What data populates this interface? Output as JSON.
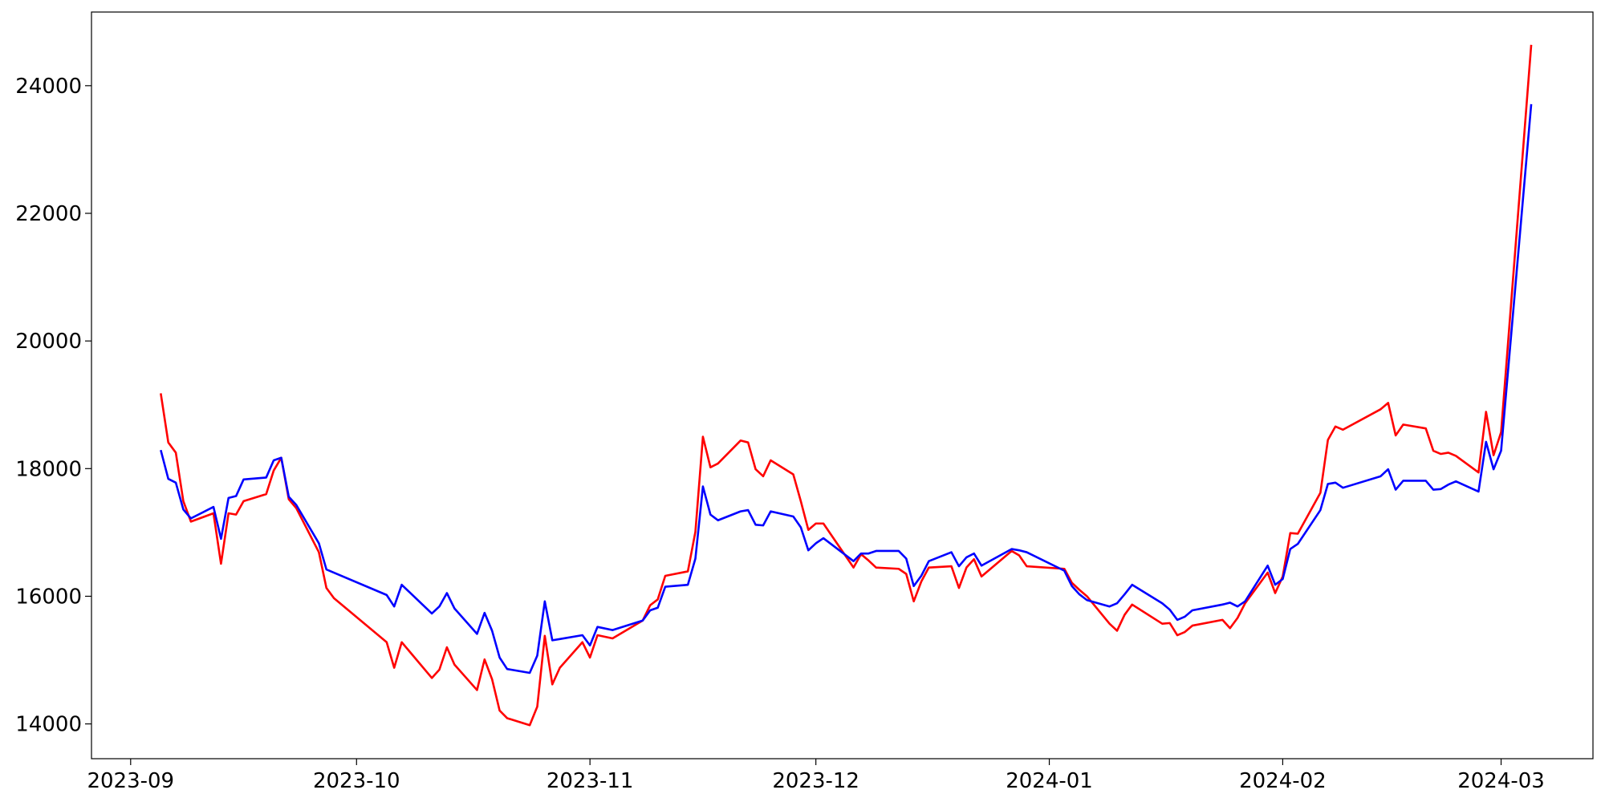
{
  "chart_data": {
    "type": "line",
    "x": [
      4,
      5,
      6,
      7,
      8,
      11,
      12,
      13,
      14,
      15,
      18,
      19,
      20,
      21,
      22,
      25,
      26,
      27,
      34,
      35,
      36,
      40,
      41,
      42,
      43,
      46,
      47,
      48,
      49,
      50,
      53,
      54,
      55,
      56,
      57,
      60,
      61,
      62,
      64,
      68,
      69,
      70,
      71,
      74,
      75,
      76,
      77,
      78,
      81,
      82,
      83,
      84,
      85,
      88,
      89,
      90,
      91,
      92,
      96,
      97,
      98,
      99,
      102,
      103,
      104,
      105,
      106,
      109,
      110,
      111,
      112,
      113,
      117,
      118,
      119,
      124,
      125,
      126,
      127,
      130,
      131,
      132,
      133,
      137,
      138,
      139,
      140,
      141,
      145,
      146,
      147,
      148,
      151,
      152,
      153,
      154,
      155,
      158,
      159,
      160,
      161,
      166,
      167,
      168,
      169,
      172,
      173,
      174,
      175,
      176,
      179,
      180,
      181,
      182,
      186
    ],
    "series": [
      {
        "color": "#ff0000",
        "values": [
          19180,
          18410,
          18250,
          17490,
          17170,
          17300,
          16510,
          17300,
          17280,
          17490,
          17600,
          17970,
          18170,
          17520,
          17380,
          16690,
          16130,
          15970,
          15280,
          14880,
          15280,
          14720,
          14850,
          15200,
          14930,
          14530,
          15010,
          14700,
          14210,
          14090,
          13980,
          14270,
          15380,
          14620,
          14880,
          15280,
          15040,
          15390,
          15340,
          15620,
          15860,
          15950,
          16320,
          16390,
          17010,
          18500,
          18020,
          18080,
          18440,
          18410,
          17990,
          17880,
          18130,
          17910,
          17490,
          17040,
          17140,
          17140,
          16450,
          16660,
          16560,
          16450,
          16430,
          16350,
          15920,
          16230,
          16450,
          16470,
          16130,
          16450,
          16580,
          16310,
          16710,
          16640,
          16470,
          16430,
          16210,
          16100,
          16000,
          15570,
          15460,
          15710,
          15870,
          15570,
          15580,
          15390,
          15440,
          15540,
          15630,
          15500,
          15660,
          15890,
          16370,
          16050,
          16310,
          16990,
          16980,
          17620,
          18450,
          18660,
          18610,
          18930,
          19030,
          18520,
          18690,
          18630,
          18280,
          18230,
          18250,
          18200,
          17940,
          18890,
          18210,
          18570,
          24640
        ]
      },
      {
        "color": "#0000ff",
        "values": [
          18290,
          17840,
          17780,
          17360,
          17220,
          17400,
          16900,
          17540,
          17570,
          17830,
          17860,
          18130,
          18170,
          17560,
          17430,
          16830,
          16420,
          16370,
          16020,
          15840,
          16180,
          15730,
          15840,
          16050,
          15810,
          15410,
          15740,
          15460,
          15040,
          14860,
          14800,
          15070,
          15920,
          15310,
          15330,
          15390,
          15230,
          15520,
          15470,
          15620,
          15780,
          15820,
          16150,
          16180,
          16590,
          17720,
          17280,
          17190,
          17330,
          17350,
          17120,
          17110,
          17330,
          17250,
          17080,
          16720,
          16830,
          16910,
          16550,
          16670,
          16670,
          16710,
          16710,
          16590,
          16160,
          16320,
          16550,
          16690,
          16470,
          16610,
          16670,
          16480,
          16740,
          16720,
          16690,
          16400,
          16160,
          16030,
          15940,
          15840,
          15890,
          16030,
          16180,
          15890,
          15790,
          15630,
          15680,
          15780,
          15870,
          15900,
          15840,
          15920,
          16480,
          16180,
          16270,
          16740,
          16820,
          17350,
          17760,
          17780,
          17700,
          17880,
          17990,
          17670,
          17810,
          17810,
          17670,
          17680,
          17750,
          17800,
          17640,
          18420,
          17990,
          18280,
          23710
        ]
      }
    ],
    "xlim": [
      -5.2,
      194.2
    ],
    "xticks": [
      {
        "value": 0,
        "label": "2023-09"
      },
      {
        "value": 30,
        "label": "2023-10"
      },
      {
        "value": 61,
        "label": "2023-11"
      },
      {
        "value": 91,
        "label": "2023-12"
      },
      {
        "value": 122,
        "label": "2024-01"
      },
      {
        "value": 153,
        "label": "2024-02"
      },
      {
        "value": 182,
        "label": "2024-03"
      }
    ],
    "ylim": [
      13455,
      25154
    ],
    "yticks": [
      14000,
      16000,
      18000,
      20000,
      22000,
      24000
    ],
    "grid": false
  }
}
